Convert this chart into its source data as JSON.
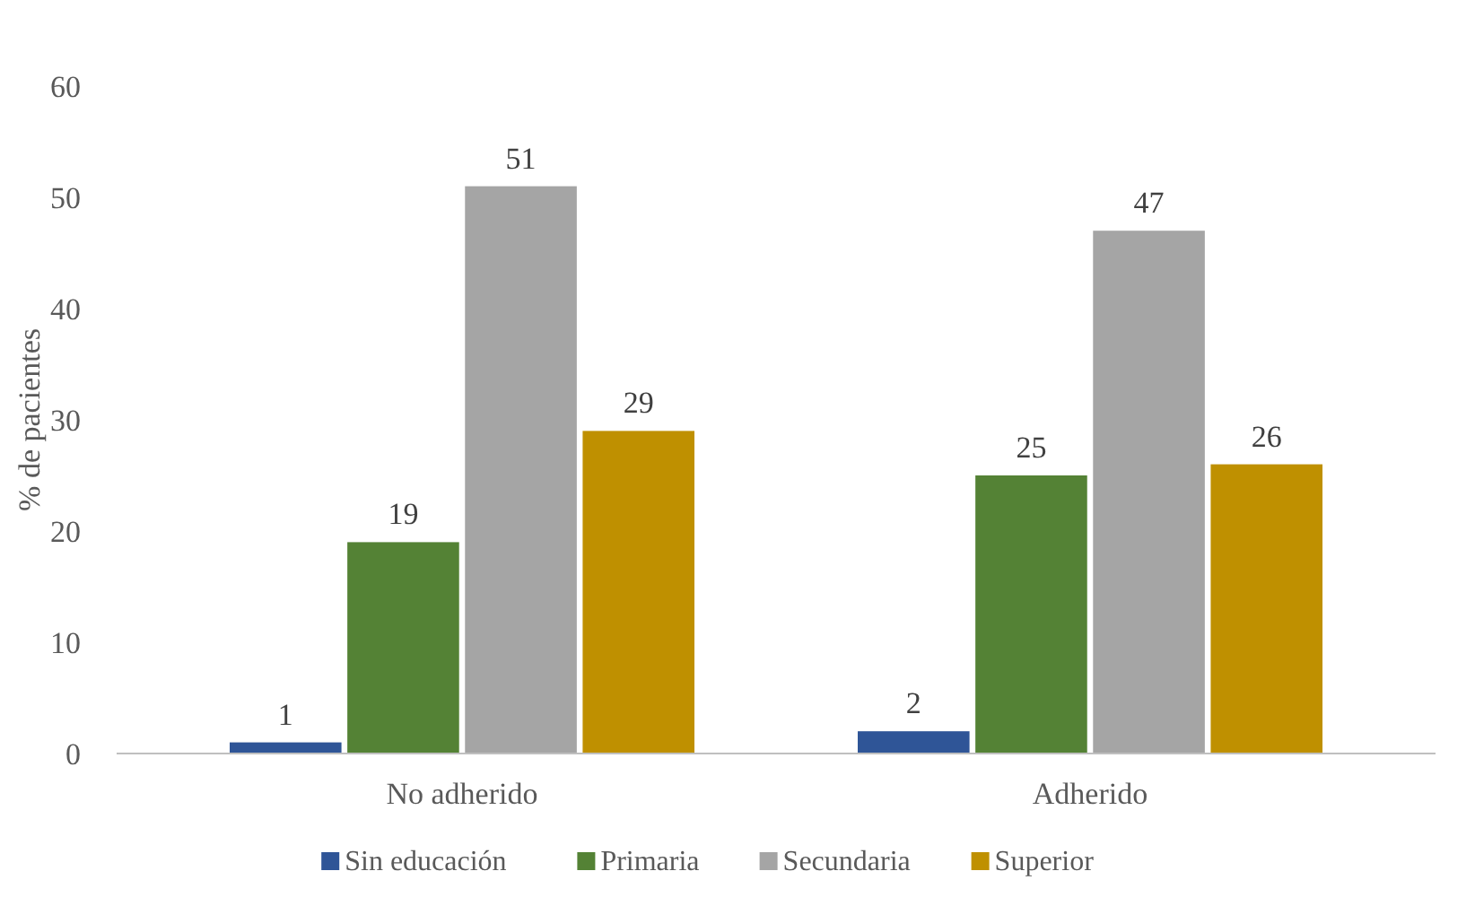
{
  "chart_data": {
    "type": "bar",
    "ylabel": "% de pacientes",
    "categories": [
      "No adherido",
      "Adherido"
    ],
    "series": [
      {
        "name": "Sin educación",
        "color": "#2f5597",
        "values": [
          1,
          2
        ]
      },
      {
        "name": "Primaria",
        "color": "#548235",
        "values": [
          19,
          25
        ]
      },
      {
        "name": "Secundaria",
        "color": "#a5a5a5",
        "values": [
          51,
          47
        ]
      },
      {
        "name": "Superior",
        "color": "#bf9000",
        "values": [
          29,
          26
        ]
      }
    ],
    "ylim": [
      0,
      60
    ],
    "yticks": [
      0,
      10,
      20,
      30,
      40,
      50,
      60
    ],
    "data_labels": true,
    "legend": "bottom",
    "grid": false
  }
}
